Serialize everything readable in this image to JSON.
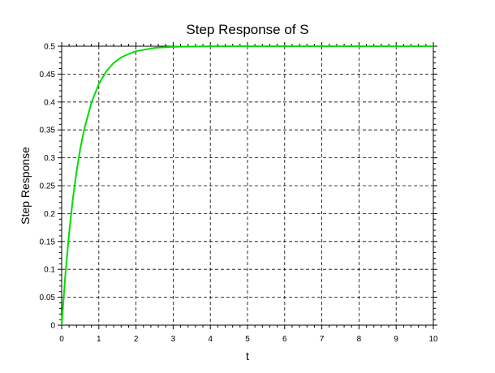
{
  "chart_data": {
    "type": "line",
    "title": "Step Response of S",
    "xlabel": "t",
    "ylabel": "Step Response",
    "xlim": [
      0,
      10
    ],
    "ylim": [
      0,
      0.5
    ],
    "grid": true,
    "x_ticks": [
      "0",
      "1",
      "2",
      "3",
      "4",
      "5",
      "6",
      "7",
      "8",
      "9",
      "10"
    ],
    "y_ticks": [
      "0",
      "0.05",
      "0.1",
      "0.15",
      "0.2",
      "0.25",
      "0.3",
      "0.35",
      "0.4",
      "0.45",
      "0.5"
    ],
    "series": [
      {
        "color": "#00dd00",
        "x": [
          0,
          0.1,
          0.2,
          0.3,
          0.4,
          0.5,
          0.6,
          0.8,
          1.0,
          1.2,
          1.4,
          1.6,
          1.8,
          2.0,
          2.5,
          3.0,
          4.0,
          5.0,
          6.0,
          7.0,
          8.0,
          9.0,
          10.0
        ],
        "y": [
          0,
          0.091,
          0.165,
          0.226,
          0.275,
          0.316,
          0.349,
          0.399,
          0.432,
          0.455,
          0.47,
          0.48,
          0.486,
          0.491,
          0.497,
          0.499,
          0.5,
          0.5,
          0.5,
          0.5,
          0.5,
          0.5,
          0.5
        ]
      }
    ]
  }
}
